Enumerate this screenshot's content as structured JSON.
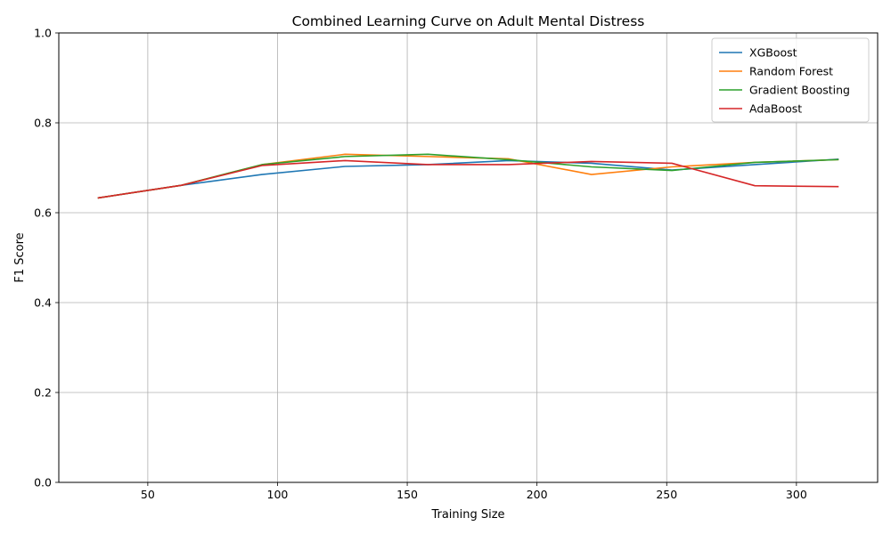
{
  "chart_data": {
    "type": "line",
    "title": "Combined Learning Curve on Adult Mental Distress",
    "xlabel": "Training Size",
    "ylabel": "F1 Score",
    "xlim": [
      15.7,
      331.3
    ],
    "ylim": [
      0.0,
      1.0
    ],
    "x_ticks": [
      50,
      100,
      150,
      200,
      250,
      300
    ],
    "y_ticks": [
      0.0,
      0.2,
      0.4,
      0.6,
      0.8,
      1.0
    ],
    "x_tick_labels": [
      "50",
      "100",
      "150",
      "200",
      "250",
      "300"
    ],
    "y_tick_labels": [
      "0.0",
      "0.2",
      "0.4",
      "0.6",
      "0.8",
      "1.0"
    ],
    "grid": true,
    "legend_position": "top-right",
    "x": [
      31,
      63,
      94,
      126,
      158,
      189,
      221,
      252,
      284,
      316
    ],
    "series": [
      {
        "name": "XGBoost",
        "color": "#1f77b4",
        "values": [
          0.633,
          0.661,
          0.685,
          0.703,
          0.707,
          0.716,
          0.71,
          0.695,
          0.707,
          0.719
        ]
      },
      {
        "name": "Random Forest",
        "color": "#ff7f0e",
        "values": [
          0.633,
          0.661,
          0.707,
          0.73,
          0.725,
          0.72,
          0.685,
          0.702,
          0.712,
          0.718
        ]
      },
      {
        "name": "Gradient Boosting",
        "color": "#2ca02c",
        "values": [
          0.633,
          0.661,
          0.707,
          0.725,
          0.73,
          0.718,
          0.702,
          0.694,
          0.712,
          0.718
        ]
      },
      {
        "name": "AdaBoost",
        "color": "#d62728",
        "values": [
          0.633,
          0.661,
          0.705,
          0.716,
          0.707,
          0.707,
          0.714,
          0.71,
          0.66,
          0.658
        ]
      }
    ]
  }
}
